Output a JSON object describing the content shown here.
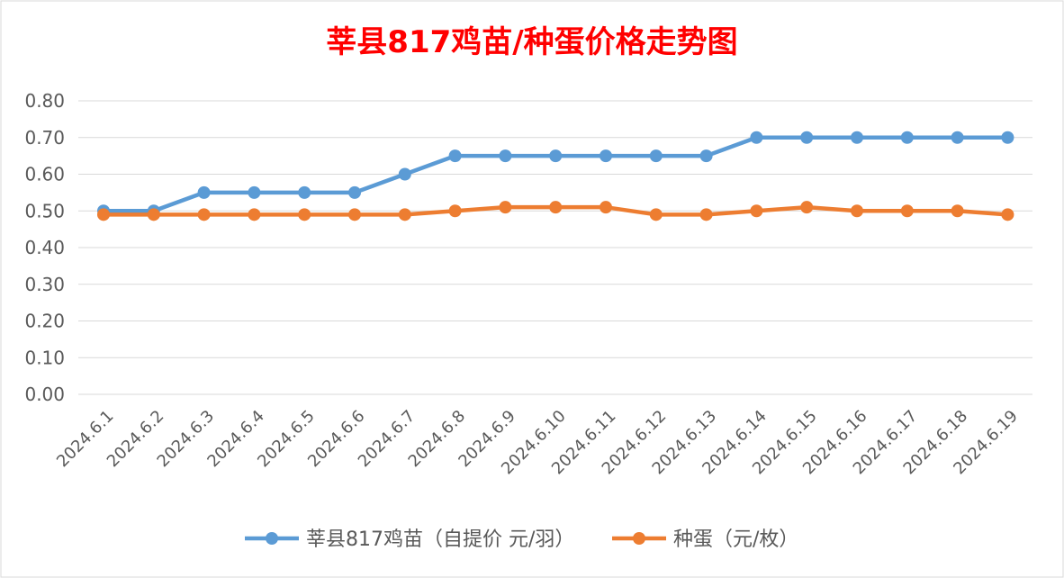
{
  "chart_data": {
    "type": "line",
    "title": "莘县817鸡苗/种蛋价格走势图",
    "categories": [
      "2024.6.1",
      "2024.6.2",
      "2024.6.3",
      "2024.6.4",
      "2024.6.5",
      "2024.6.6",
      "2024.6.7",
      "2024.6.8",
      "2024.6.9",
      "2024.6.10",
      "2024.6.11",
      "2024.6.12",
      "2024.6.13",
      "2024.6.14",
      "2024.6.15",
      "2024.6.16",
      "2024.6.17",
      "2024.6.18",
      "2024.6.19"
    ],
    "series": [
      {
        "name": "莘县817鸡苗（自提价 元/羽）",
        "color": "#5b9bd5",
        "values": [
          0.5,
          0.5,
          0.55,
          0.55,
          0.55,
          0.55,
          0.6,
          0.65,
          0.65,
          0.65,
          0.65,
          0.65,
          0.65,
          0.7,
          0.7,
          0.7,
          0.7,
          0.7,
          0.7
        ]
      },
      {
        "name": "种蛋（元/枚）",
        "color": "#ed7d31",
        "values": [
          0.49,
          0.49,
          0.49,
          0.49,
          0.49,
          0.49,
          0.49,
          0.5,
          0.51,
          0.51,
          0.51,
          0.49,
          0.49,
          0.5,
          0.51,
          0.5,
          0.5,
          0.5,
          0.49
        ]
      }
    ],
    "yticks": [
      "0.00",
      "0.10",
      "0.20",
      "0.30",
      "0.40",
      "0.50",
      "0.60",
      "0.70",
      "0.80"
    ],
    "ylim": [
      0,
      0.8
    ],
    "grid": true,
    "legend_position": "bottom",
    "title_color": "#ff0000"
  }
}
